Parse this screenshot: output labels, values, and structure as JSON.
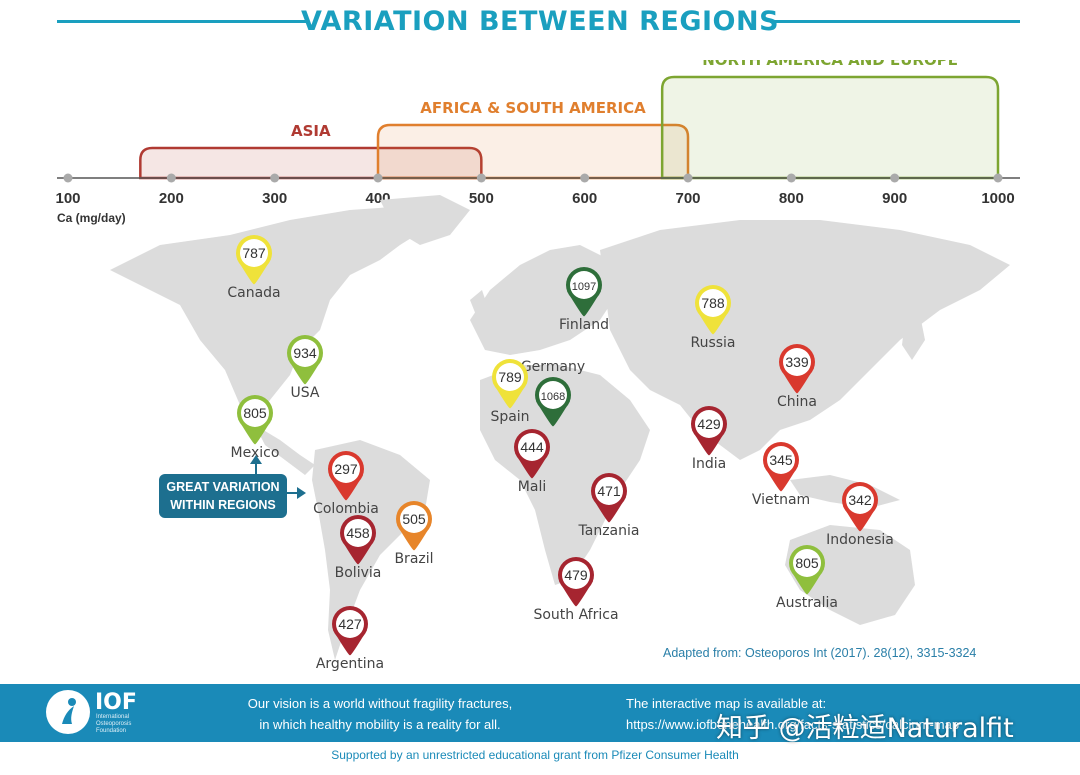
{
  "title": "VARIATION BETWEEN REGIONS",
  "colors": {
    "accent": "#1a9fbf",
    "asia": "#b03a32",
    "africa_south_america": "#e07f2e",
    "north_america_europe": "#7da531",
    "pin_red": "#d9392e",
    "pin_darkred": "#a62530",
    "pin_orange": "#e7852a",
    "pin_yellow": "#efe23a",
    "pin_lightgreen": "#8fbf3d",
    "pin_darkgreen": "#2e6e3a",
    "map": "#dcdcdc"
  },
  "chart_data": [
    {
      "type": "range",
      "axis": {
        "min": 100,
        "max": 1000,
        "ticks": [
          100,
          200,
          300,
          400,
          500,
          600,
          700,
          800,
          900,
          1000
        ],
        "label": "Ca (mg/day)"
      },
      "ranges": [
        {
          "name": "ASIA",
          "from": 170,
          "to": 500,
          "color": "#b03a32"
        },
        {
          "name": "AFRICA & SOUTH AMERICA",
          "from": 400,
          "to": 700,
          "color": "#e07f2e"
        },
        {
          "name": "NORTH AMERICA AND EUROPE",
          "from": 675,
          "to": 1000,
          "color": "#7da531"
        }
      ]
    },
    {
      "type": "map",
      "unit": "Ca (mg/day)",
      "points": [
        {
          "country": "Canada",
          "value": 787,
          "color": "#efe23a"
        },
        {
          "country": "USA",
          "value": 934,
          "color": "#8fbf3d"
        },
        {
          "country": "Mexico",
          "value": 805,
          "color": "#8fbf3d"
        },
        {
          "country": "Colombia",
          "value": 297,
          "color": "#d9392e"
        },
        {
          "country": "Bolivia",
          "value": 458,
          "color": "#a62530"
        },
        {
          "country": "Brazil",
          "value": 505,
          "color": "#e7852a"
        },
        {
          "country": "Argentina",
          "value": 427,
          "color": "#a62530"
        },
        {
          "country": "Finland",
          "value": 1097,
          "color": "#2e6e3a"
        },
        {
          "country": "Germany",
          "value": 1068,
          "color": "#2e6e3a"
        },
        {
          "country": "Spain",
          "value": 789,
          "color": "#efe23a"
        },
        {
          "country": "Mali",
          "value": 444,
          "color": "#a62530"
        },
        {
          "country": "Tanzania",
          "value": 471,
          "color": "#a62530"
        },
        {
          "country": "South Africa",
          "value": 479,
          "color": "#a62530"
        },
        {
          "country": "Russia",
          "value": 788,
          "color": "#efe23a"
        },
        {
          "country": "China",
          "value": 339,
          "color": "#d9392e"
        },
        {
          "country": "India",
          "value": 429,
          "color": "#a62530"
        },
        {
          "country": "Vietnam",
          "value": 345,
          "color": "#d9392e"
        },
        {
          "country": "Indonesia",
          "value": 342,
          "color": "#d9392e"
        },
        {
          "country": "Australia",
          "value": 805,
          "color": "#8fbf3d"
        }
      ]
    }
  ],
  "callout": {
    "line1": "GREAT VARIATION",
    "line2": "WITHIN REGIONS"
  },
  "source": "Adapted from: Osteoporos Int (2017). 28(12), 3315-3324",
  "footer": {
    "logo": "IOF",
    "logo_sub": "International Osteoporosis Foundation",
    "vision_line1": "Our vision is a world without fragility fractures,",
    "vision_line2": "in which healthy mobility is a reality for all.",
    "map_line1": "The interactive map is available at:",
    "map_line2": "https://www.iofbonehealth.org/facts-statistics/calcium-map",
    "support": "Supported by an unrestricted educational grant from Pfizer Consumer Health"
  },
  "watermark": "知乎 @活粒适Naturalfit"
}
